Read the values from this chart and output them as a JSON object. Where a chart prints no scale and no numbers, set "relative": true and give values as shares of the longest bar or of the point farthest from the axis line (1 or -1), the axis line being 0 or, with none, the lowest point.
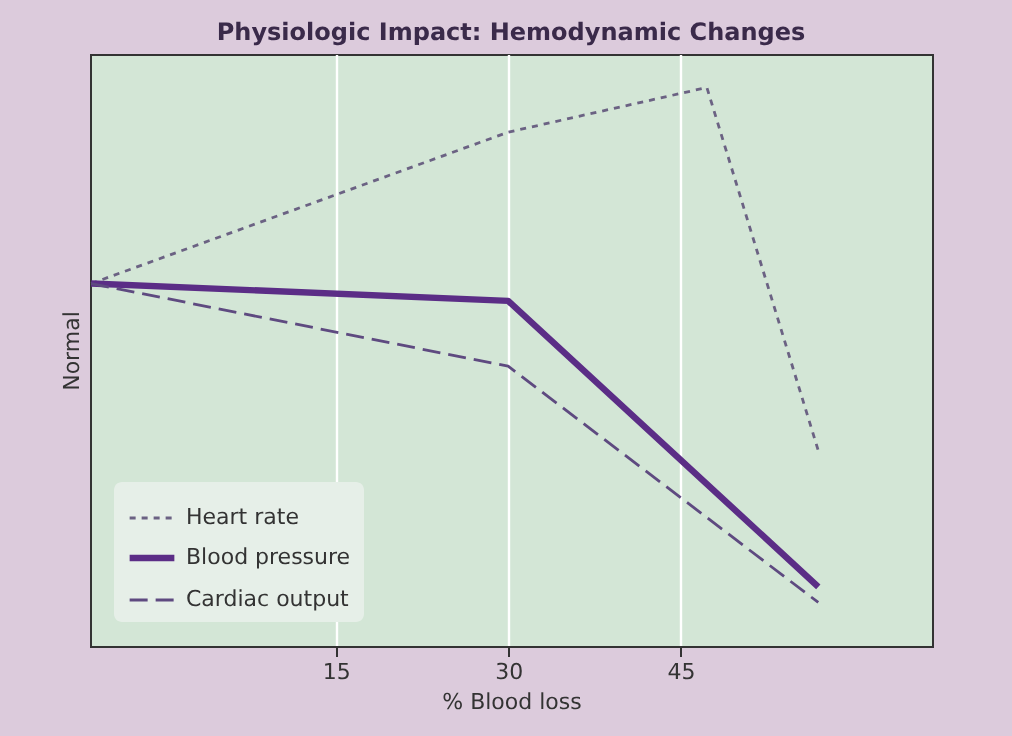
{
  "chart_data": {
    "type": "line",
    "title": "Physiologic Impact: Hemodynamic Changes",
    "xlabel": "% Blood loss",
    "ylabel": "Normal",
    "relative": true,
    "xlim": [
      -6.4,
      66.9
    ],
    "xticks": [
      15,
      30,
      45
    ],
    "grid": "x",
    "legend": "bottom left",
    "series": [
      {
        "name": "Heart rate",
        "color": "#6b6283",
        "line_style": "dotted",
        "x": [
          -6.3,
          30,
          47.3,
          57
        ],
        "values": [
          0.649,
          0.92,
          1,
          0.35
        ]
      },
      {
        "name": "Blood pressure",
        "color": "#5b2d86",
        "line_style": "solid",
        "x": [
          -6.3,
          30,
          57
        ],
        "values": [
          0.649,
          0.618,
          0.106
        ]
      },
      {
        "name": "Cardiac output",
        "color": "#5e4a80",
        "line_style": "dashed",
        "x": [
          -6.3,
          30,
          57
        ],
        "values": [
          0.649,
          0.501,
          0.078
        ]
      }
    ]
  }
}
